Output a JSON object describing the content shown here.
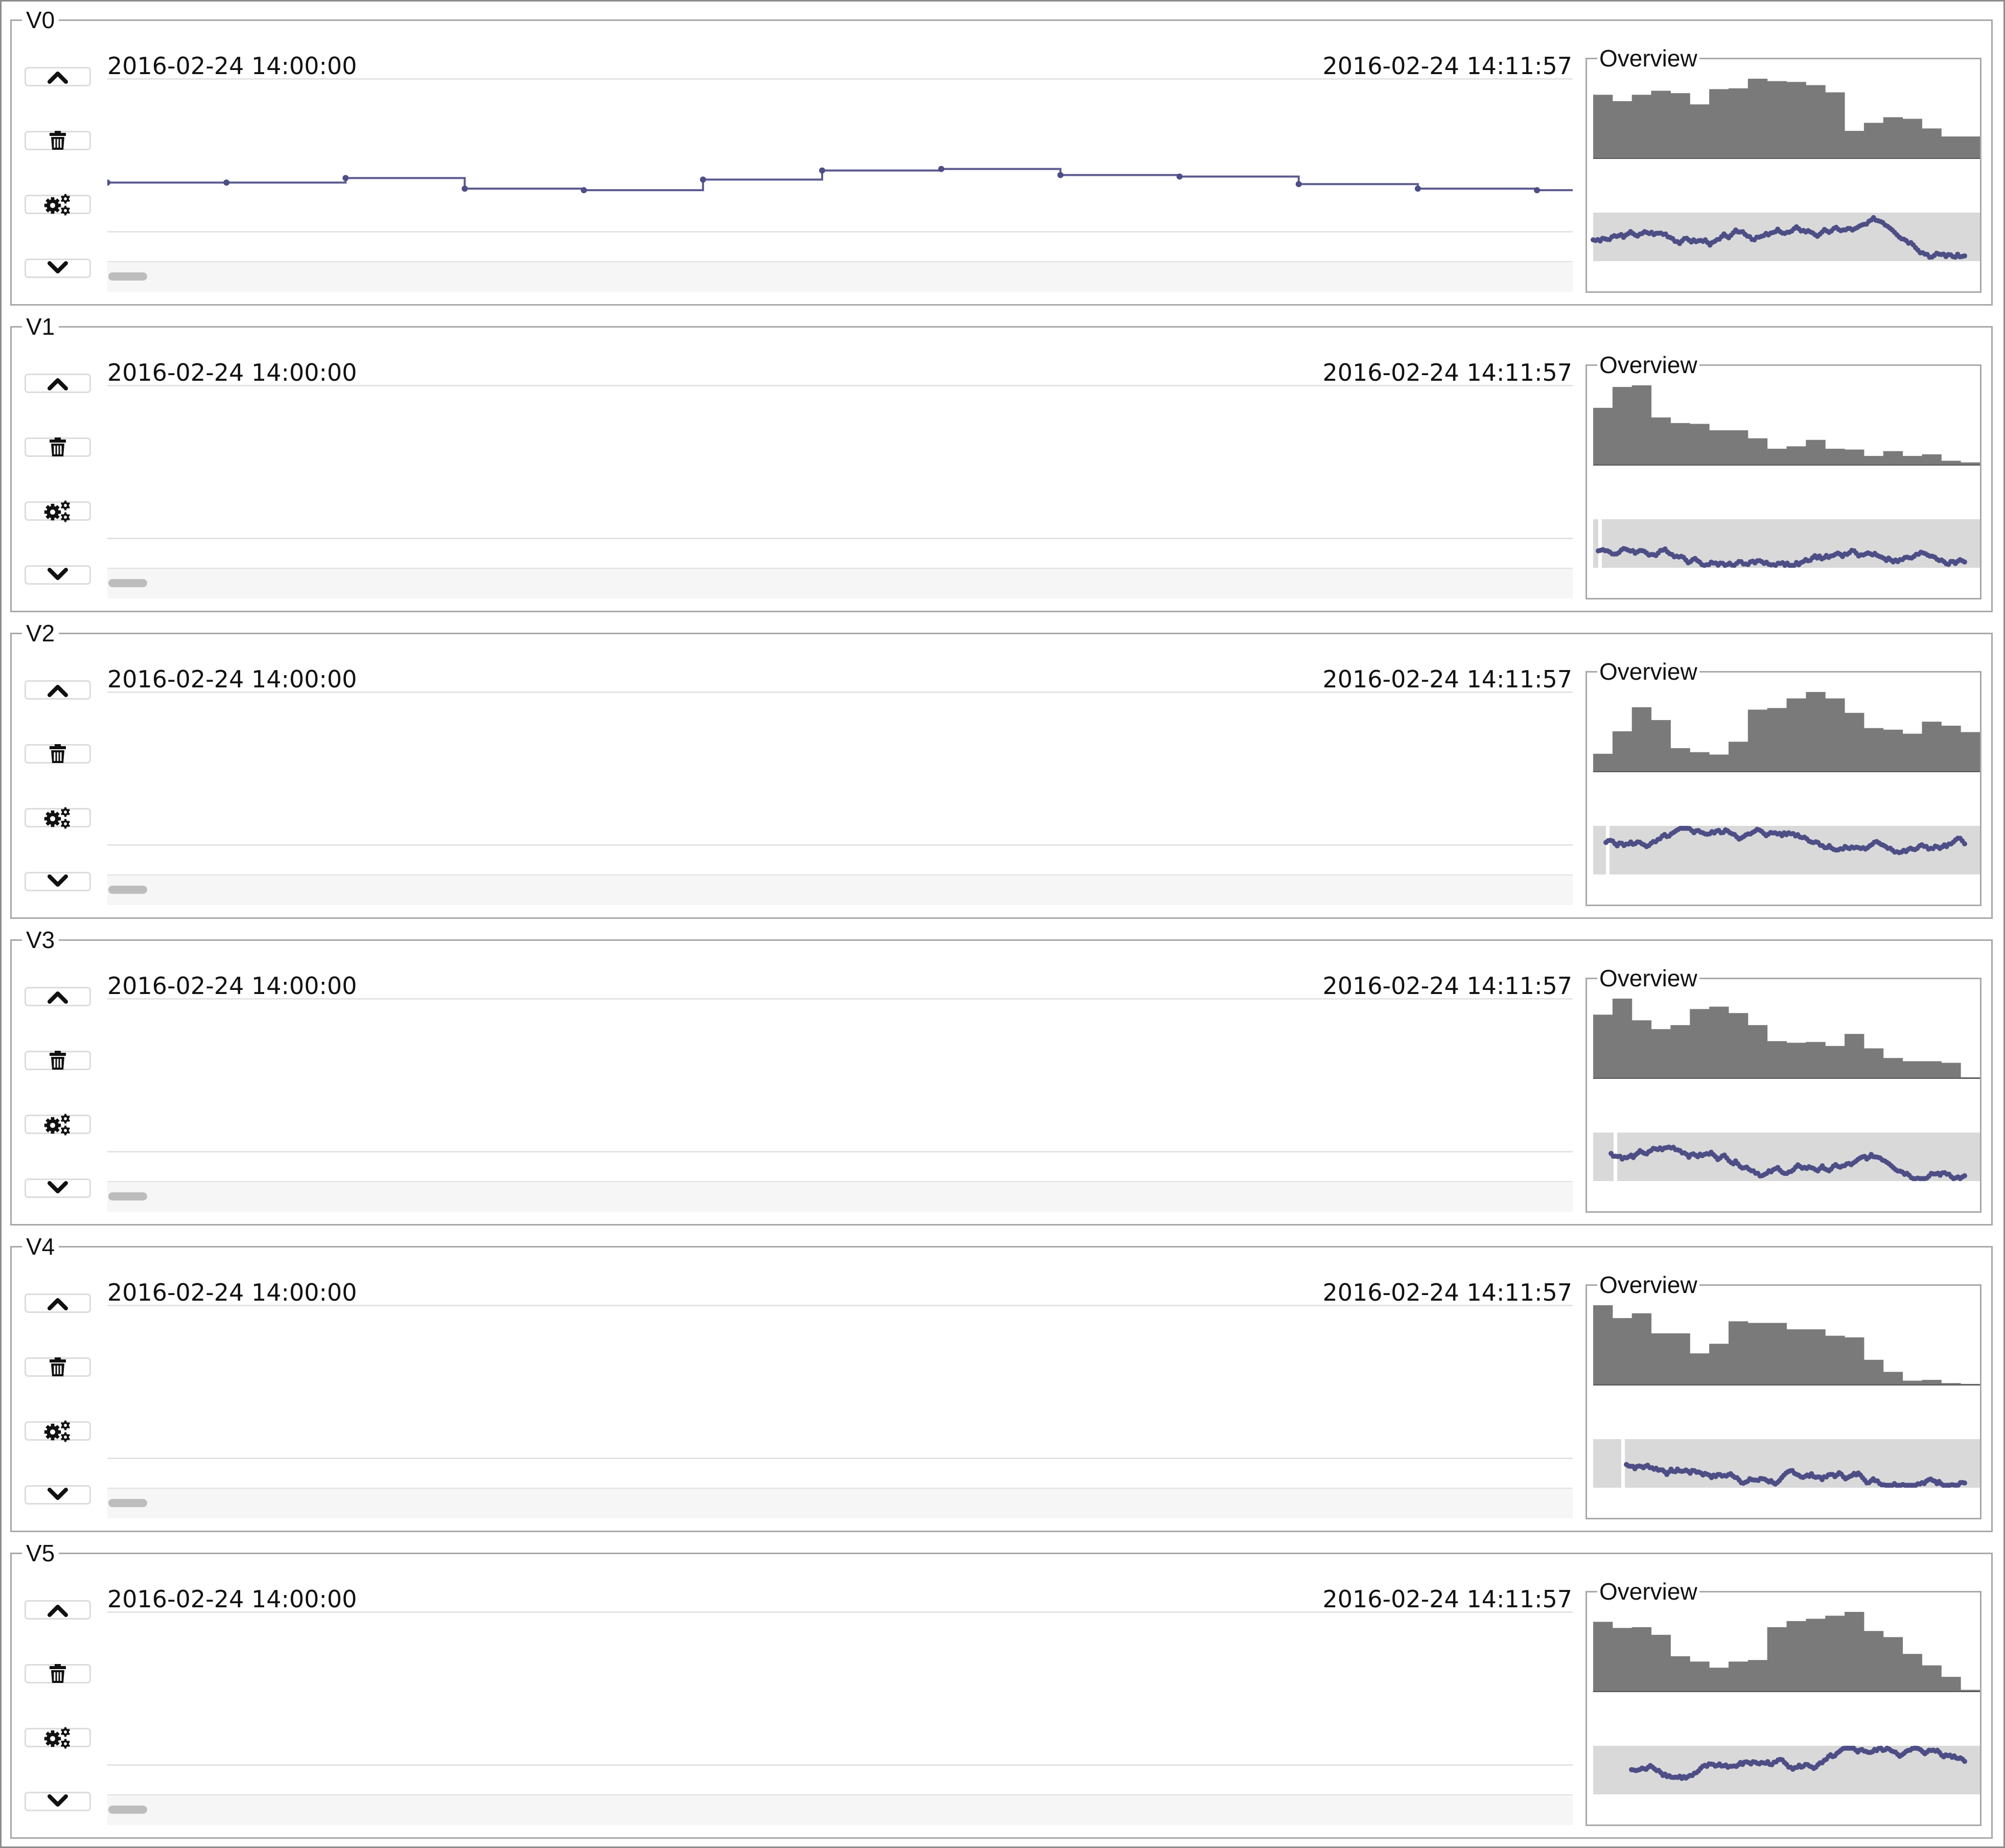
{
  "colors": {
    "line": "#5b5b8f",
    "point": "#4e4e86",
    "histogram": "#7a7a7a",
    "minimap_bg": "#d9d9d9",
    "border": "#a8a8a8"
  },
  "icons": {
    "up": "chevron-up-icon",
    "delete": "trash-icon",
    "settings": "gears-icon",
    "down": "chevron-down-icon"
  },
  "panels": [
    {
      "label": "V0",
      "start_time": "2016-02-24 14:00:00",
      "end_time": "2016-02-24 14:11:57",
      "overview_label": "Overview",
      "step_series": [
        0.32,
        0.32,
        0.35,
        0.28,
        0.27,
        0.34,
        0.4,
        0.41,
        0.37,
        0.36,
        0.31,
        0.28,
        0.27
      ],
      "histogram": [
        0.8,
        0.72,
        0.8,
        0.85,
        0.82,
        0.68,
        0.87,
        0.88,
        1.0,
        0.97,
        0.96,
        0.92,
        0.83,
        0.35,
        0.45,
        0.52,
        0.5,
        0.38,
        0.28,
        0.28
      ]
    },
    {
      "label": "V1",
      "start_time": "2016-02-24 14:00:00",
      "end_time": "2016-02-24 14:11:57",
      "overview_label": "Overview",
      "histogram": [
        0.72,
        0.98,
        1.0,
        0.6,
        0.53,
        0.52,
        0.44,
        0.44,
        0.34,
        0.21,
        0.24,
        0.32,
        0.21,
        0.2,
        0.12,
        0.18,
        0.12,
        0.14,
        0.06,
        0.04
      ]
    },
    {
      "label": "V2",
      "start_time": "2016-02-24 14:00:00",
      "end_time": "2016-02-24 14:11:57",
      "overview_label": "Overview",
      "histogram": [
        0.23,
        0.51,
        0.81,
        0.65,
        0.3,
        0.25,
        0.22,
        0.38,
        0.78,
        0.8,
        0.92,
        1.0,
        0.92,
        0.74,
        0.55,
        0.53,
        0.48,
        0.63,
        0.58,
        0.5
      ]
    },
    {
      "label": "V3",
      "start_time": "2016-02-24 14:00:00",
      "end_time": "2016-02-24 14:11:57",
      "overview_label": "Overview",
      "histogram": [
        0.8,
        1.0,
        0.73,
        0.62,
        0.67,
        0.87,
        0.9,
        0.82,
        0.67,
        0.47,
        0.45,
        0.46,
        0.41,
        0.56,
        0.38,
        0.26,
        0.22,
        0.22,
        0.2,
        0.02
      ]
    },
    {
      "label": "V4",
      "start_time": "2016-02-24 14:00:00",
      "end_time": "2016-02-24 14:11:57",
      "overview_label": "Overview",
      "histogram": [
        1.0,
        0.84,
        0.9,
        0.65,
        0.65,
        0.4,
        0.52,
        0.8,
        0.78,
        0.78,
        0.7,
        0.7,
        0.62,
        0.6,
        0.32,
        0.17,
        0.06,
        0.07,
        0.03,
        0.02
      ]
    },
    {
      "label": "V5",
      "start_time": "2016-02-24 14:00:00",
      "end_time": "2016-02-24 14:11:57",
      "overview_label": "Overview",
      "histogram": [
        0.92,
        0.84,
        0.85,
        0.75,
        0.47,
        0.4,
        0.32,
        0.4,
        0.42,
        0.85,
        0.93,
        0.96,
        1.0,
        1.05,
        0.8,
        0.72,
        0.5,
        0.35,
        0.2,
        0.03
      ]
    }
  ]
}
